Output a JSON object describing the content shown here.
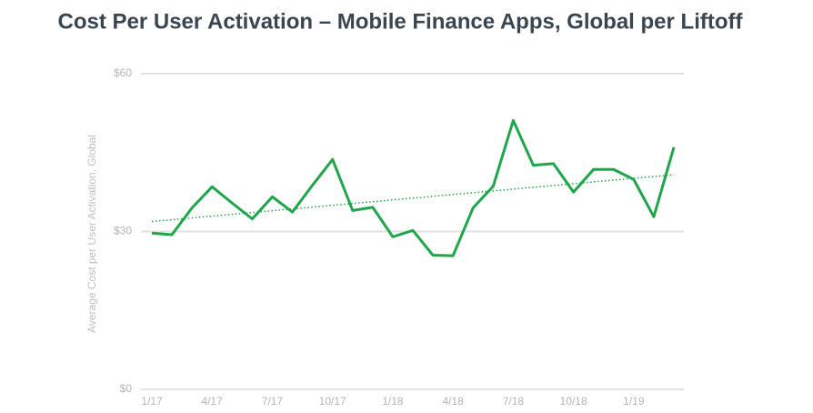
{
  "chart_data": {
    "type": "line",
    "title": "Cost Per User Activation – Mobile Finance Apps, Global per Liftoff",
    "y_label": "Average Cost per User Activation, Global",
    "categories": [
      "1/17",
      null,
      null,
      "4/17",
      null,
      null,
      "7/17",
      null,
      null,
      "10/17",
      null,
      null,
      "1/18",
      null,
      null,
      "4/18",
      null,
      null,
      "7/18",
      null,
      null,
      "10/18",
      null,
      null,
      "1/19",
      null,
      null
    ],
    "series": [
      {
        "color": "#1fa64a",
        "values": [
          29.7,
          29.4,
          34.5,
          38.5,
          35.4,
          32.4,
          36.6,
          33.7,
          38.8,
          43.7,
          34.0,
          34.6,
          29.0,
          30.2,
          25.5,
          25.4,
          34.5,
          38.6,
          51.1,
          42.6,
          42.9,
          37.5,
          41.8,
          41.8,
          39.9,
          32.8,
          46.0
        ]
      }
    ],
    "trendline": {
      "color": "#1fa64a",
      "start": 31.9,
      "end": 40.8
    },
    "ylim": [
      0,
      60
    ],
    "yticks": [
      {
        "value": 0,
        "label": "$0"
      },
      {
        "value": 30,
        "label": "$30"
      },
      {
        "value": 60,
        "label": "$60"
      }
    ],
    "grid": true
  }
}
